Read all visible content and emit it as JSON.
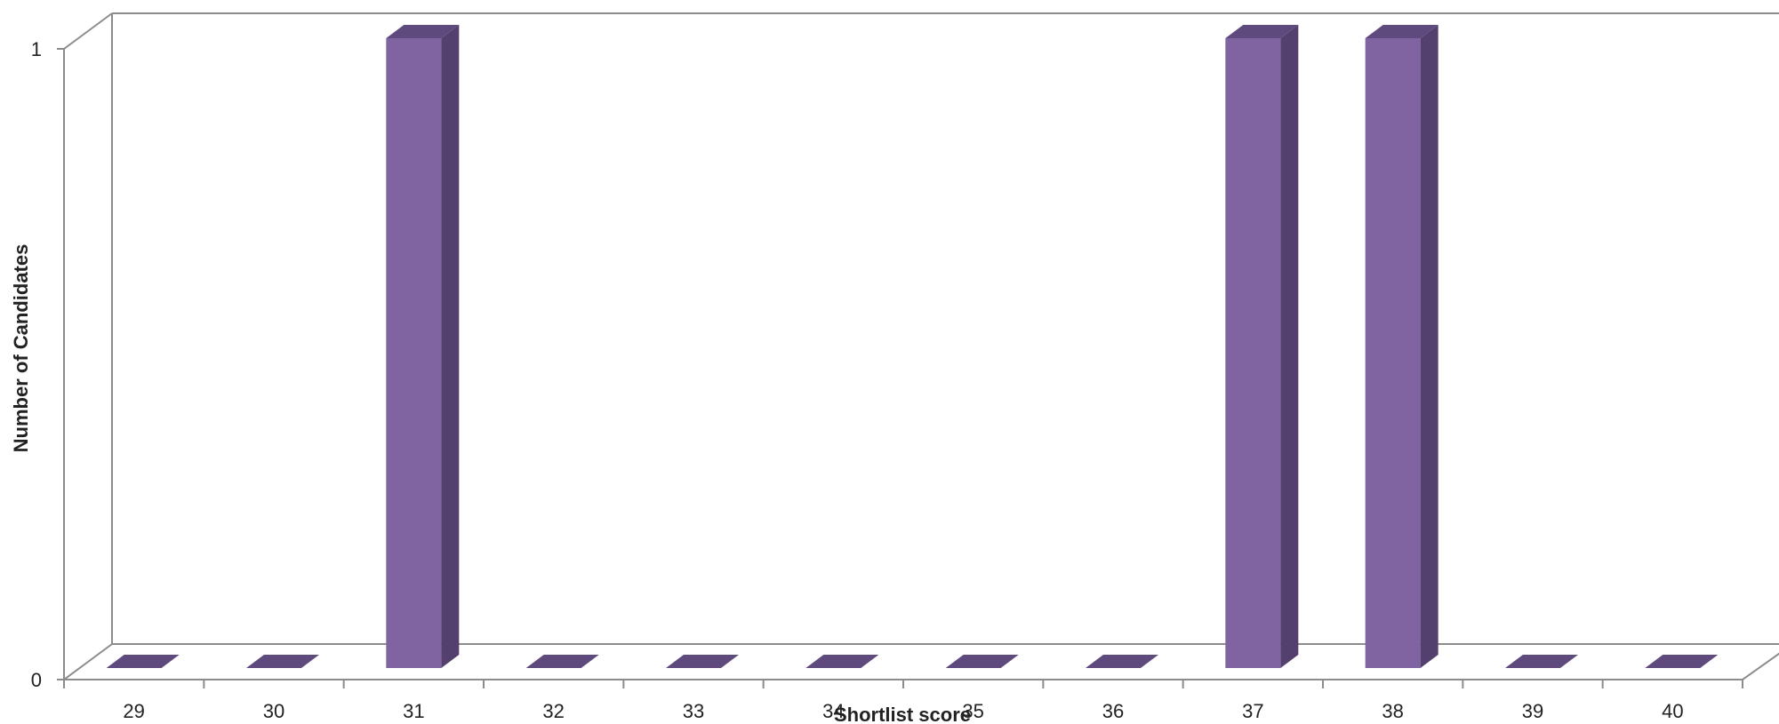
{
  "chart_data": {
    "type": "bar",
    "style": "3d-column",
    "categories": [
      "29",
      "30",
      "31",
      "32",
      "33",
      "34",
      "35",
      "36",
      "37",
      "38",
      "39",
      "40"
    ],
    "values": [
      0,
      0,
      1,
      0,
      0,
      0,
      0,
      0,
      1,
      1,
      0,
      0
    ],
    "title": "",
    "xlabel": "Shortlist score",
    "ylabel": "Number of Candidates",
    "ylim": [
      0,
      1
    ],
    "yticks": [
      "0",
      "1"
    ],
    "grid": false,
    "legend": "none",
    "colors": {
      "bar_front": "#8064a2",
      "bar_side": "#54406e",
      "bar_top": "#5f4a7e",
      "axis": "#8c8c8c"
    }
  }
}
